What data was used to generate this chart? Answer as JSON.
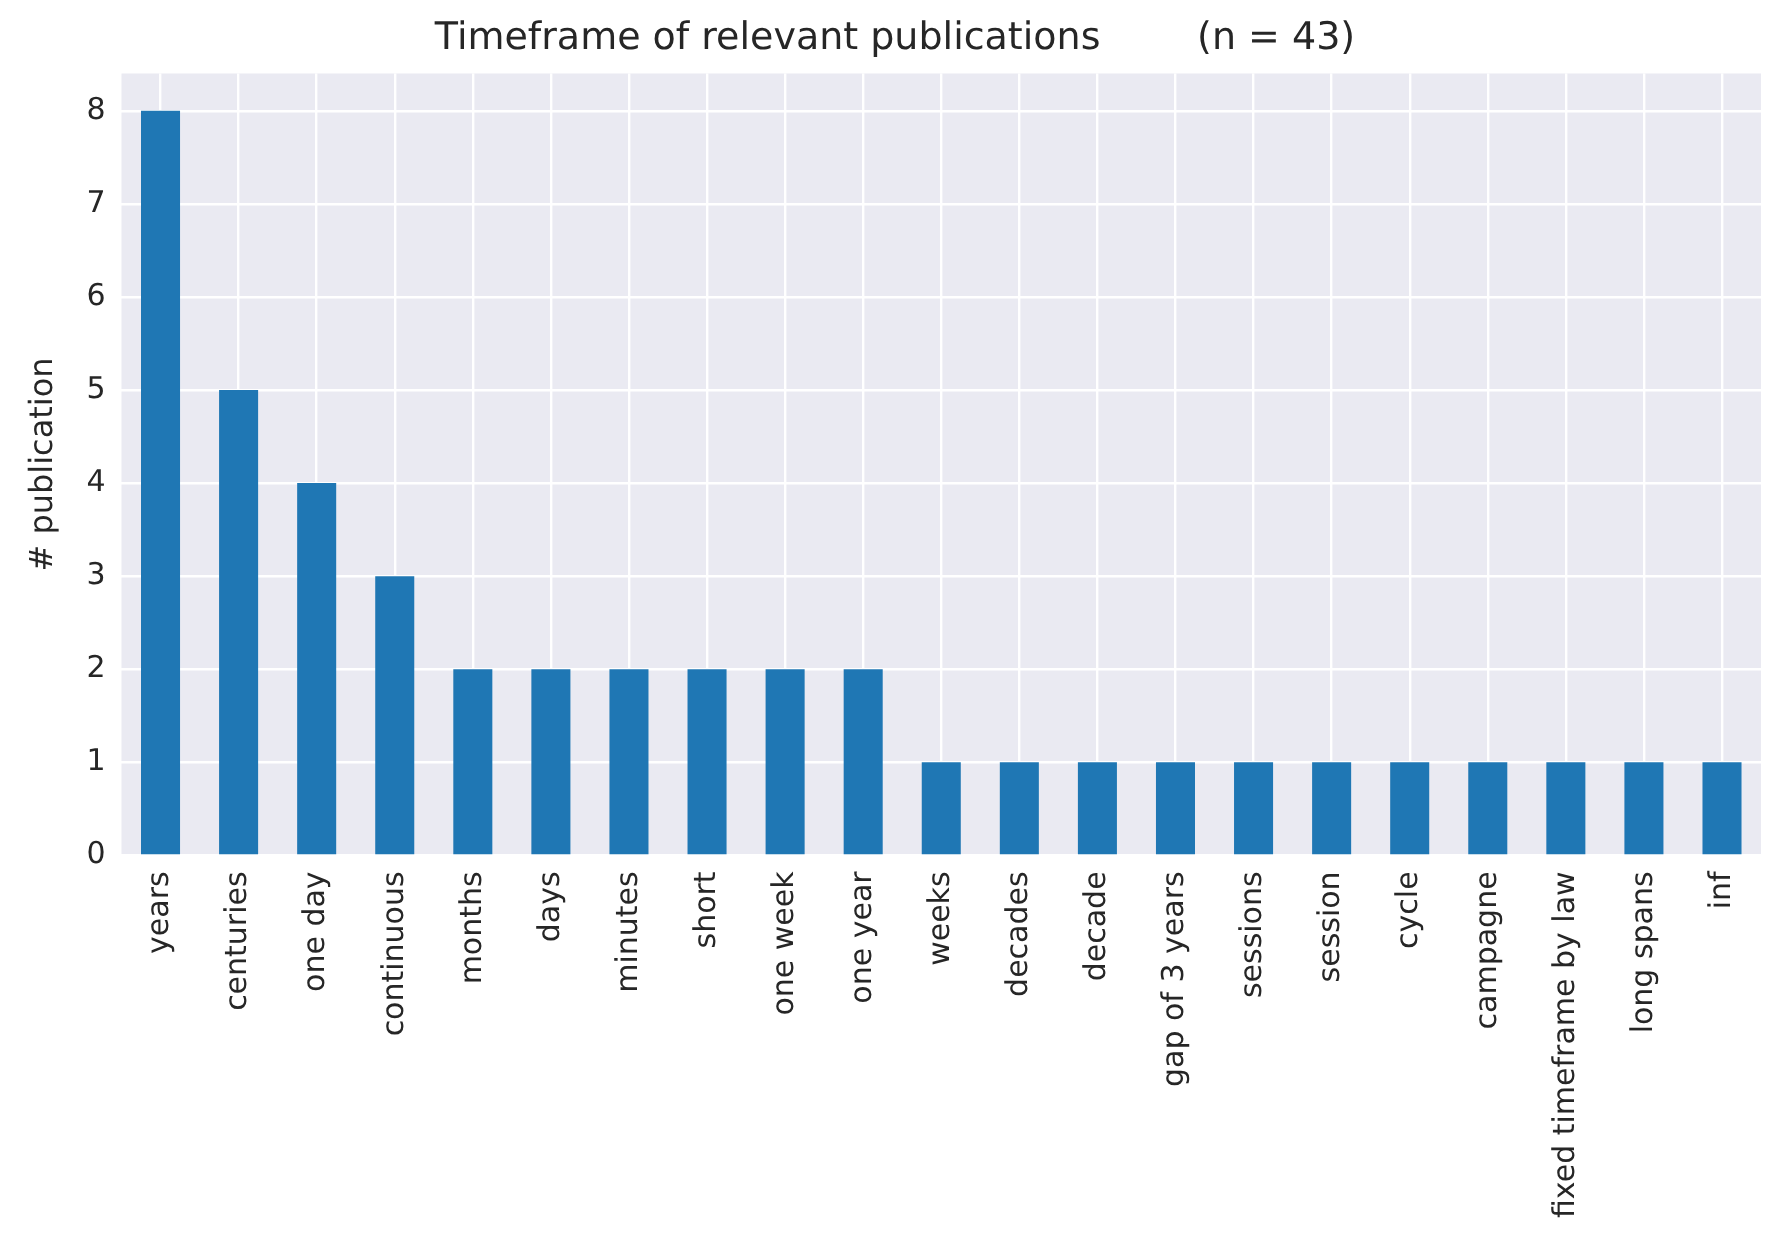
{
  "chart_data": {
    "type": "bar",
    "title": "Timeframe of relevant publications        (n = 43)",
    "ylabel": "# publication",
    "categories": [
      "years",
      "centuries",
      "one day",
      "continuous",
      "months",
      "days",
      "minutes",
      "short",
      "one week",
      "one year",
      "weeks",
      "decades",
      "decade",
      "gap of 3 years",
      "sessions",
      "session",
      "cycle",
      "campagne",
      "fixed timeframe by law",
      "long spans",
      "inf"
    ],
    "values": [
      8,
      5,
      4,
      3,
      2,
      2,
      2,
      2,
      2,
      2,
      1,
      1,
      1,
      1,
      1,
      1,
      1,
      1,
      1,
      1,
      1
    ],
    "color": "#1f77b4",
    "ylim": [
      0,
      8.4
    ],
    "yticks": [
      0,
      1,
      2,
      3,
      4,
      5,
      6,
      7,
      8
    ],
    "grid": true,
    "legend": false
  }
}
